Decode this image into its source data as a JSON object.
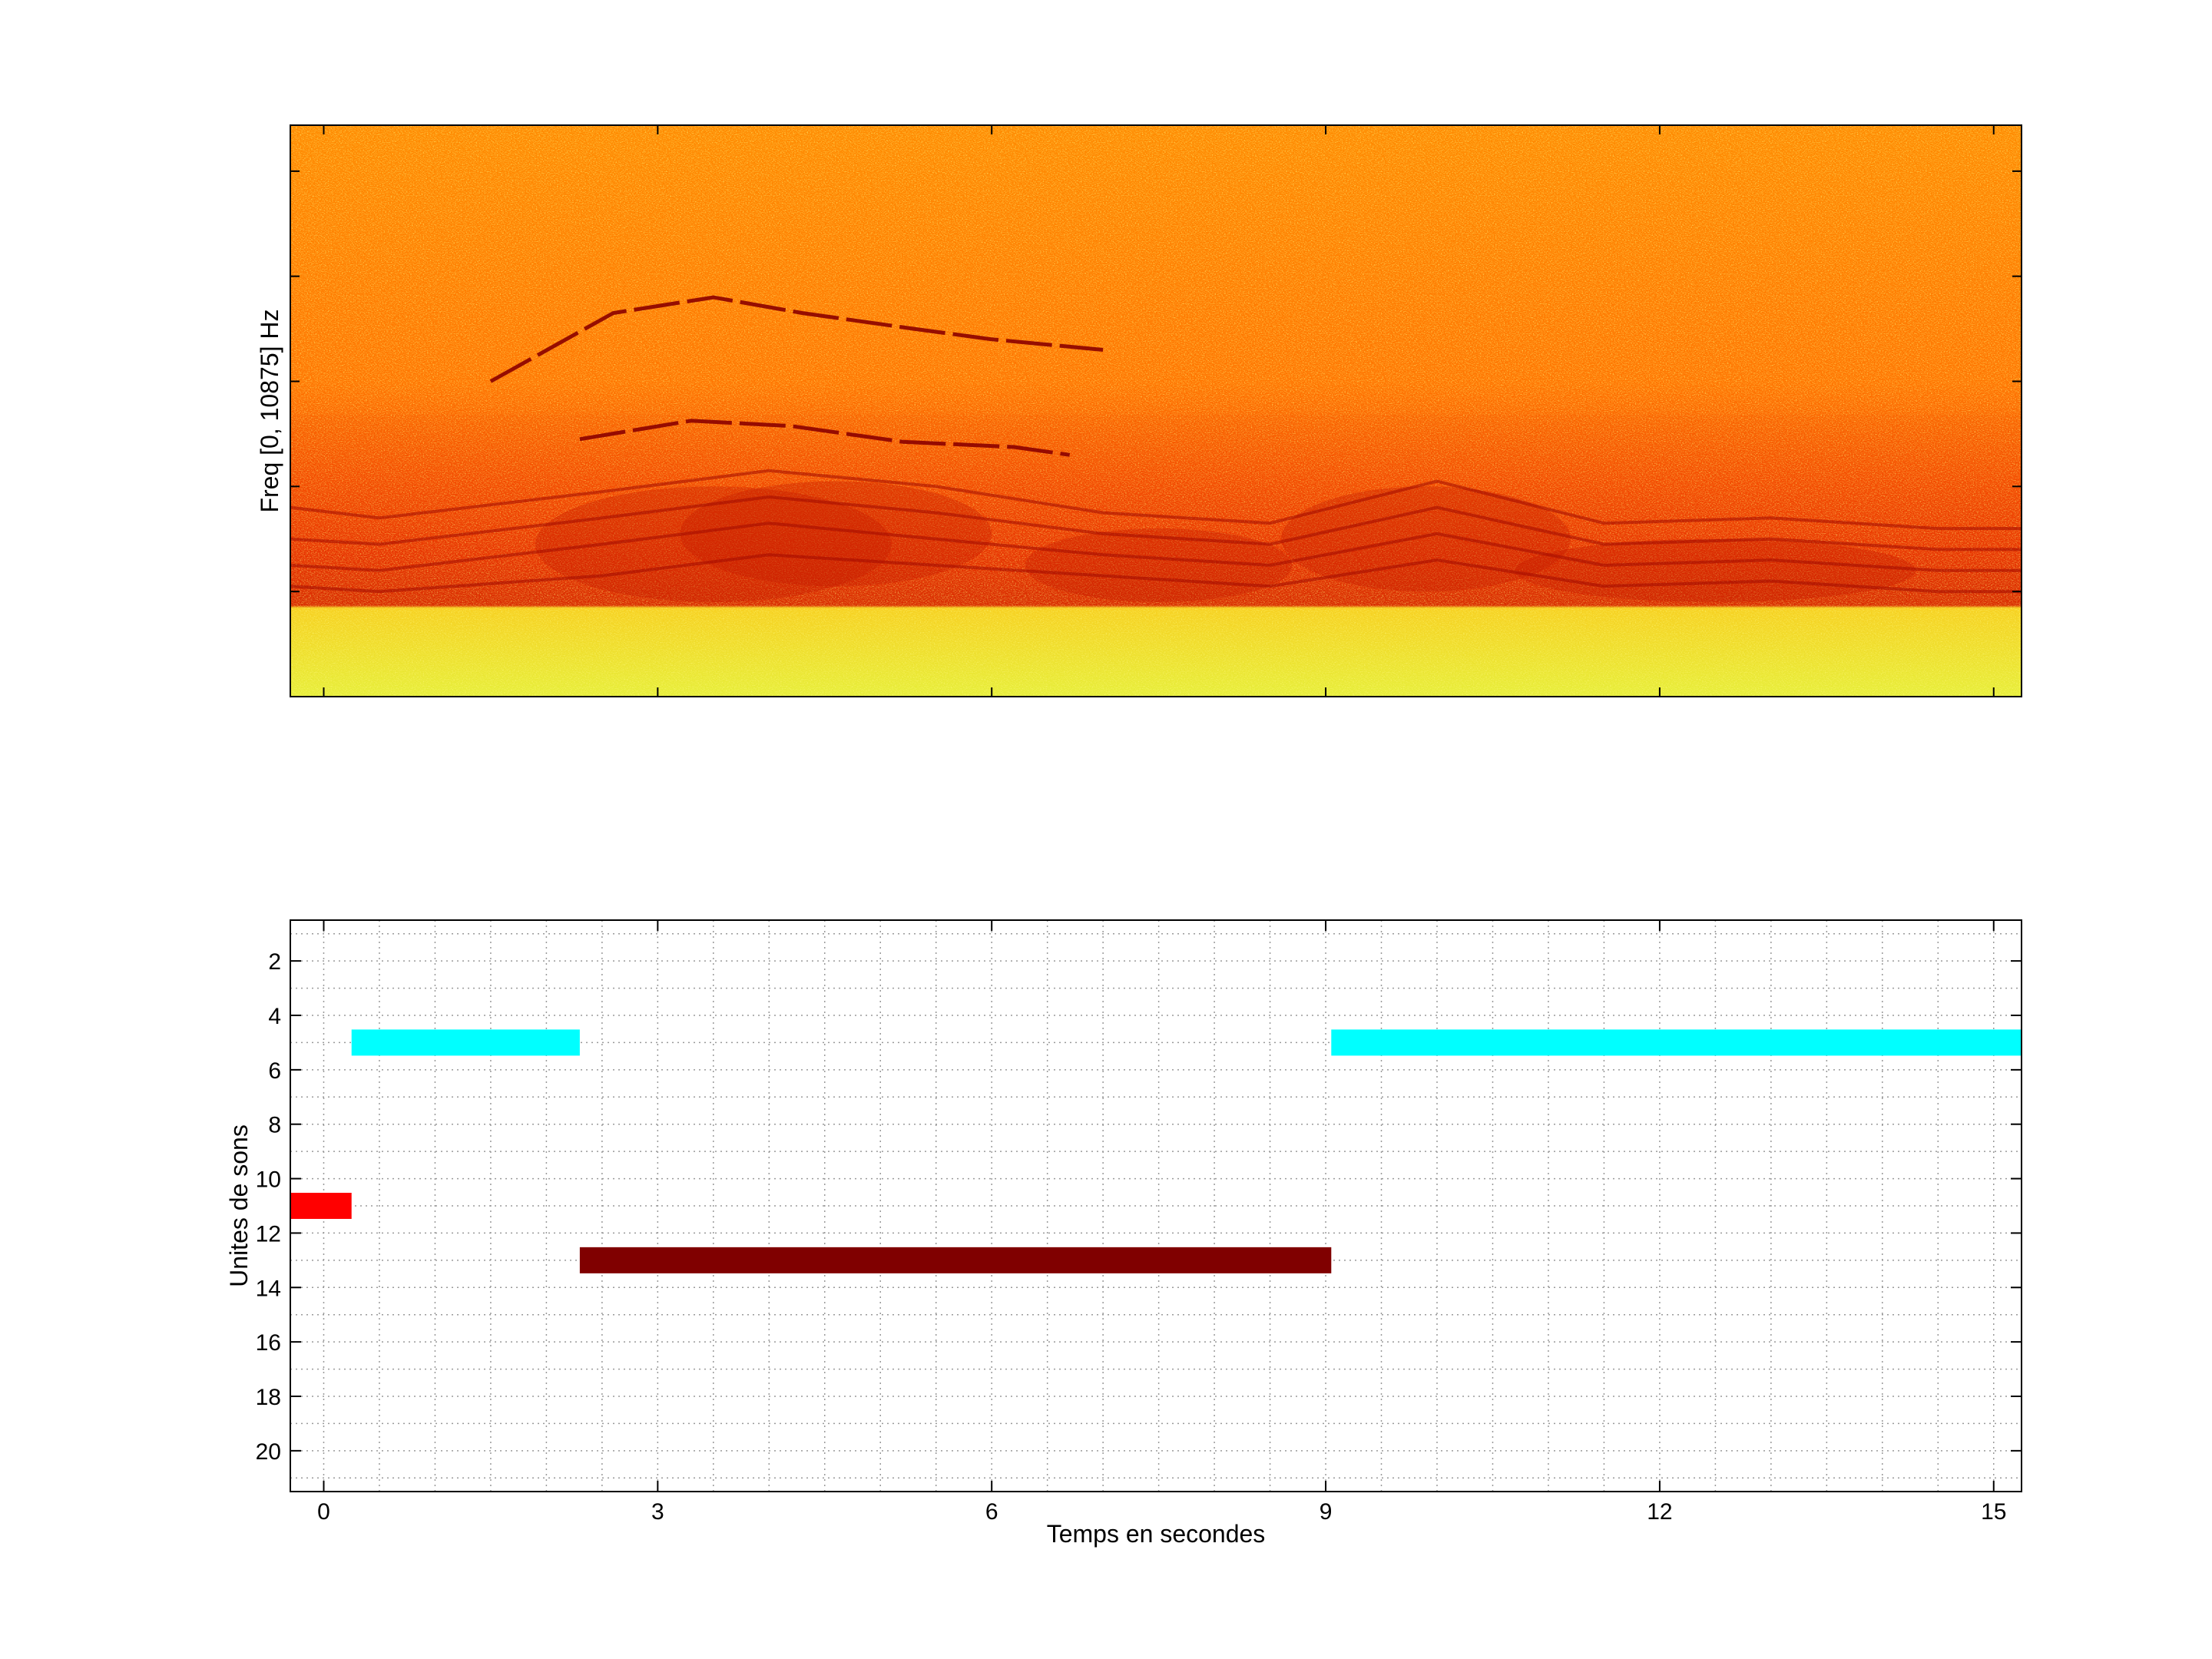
{
  "chart_data": [
    {
      "type": "heatmap",
      "title": "",
      "ylabel": "Freq [0, 10875] Hz",
      "xlabel": "",
      "xlim": [
        -0.3,
        15.25
      ],
      "ylim": [
        0,
        10875
      ],
      "colormap": [
        "#f4f02a",
        "#ffb000",
        "#ff7a00",
        "#e83a00",
        "#8b0000"
      ],
      "harmonic_tracks": [
        {
          "x": [
            2.3,
            3.3,
            4.2,
            5.2,
            6.2,
            6.7
          ],
          "y": [
            4.9,
            5.25,
            5.15,
            4.85,
            4.75,
            4.6
          ]
        },
        {
          "x": [
            1.5,
            2.6,
            3.5,
            4.3,
            5.3,
            6.0,
            7.0
          ],
          "y": [
            6.0,
            7.3,
            7.6,
            7.3,
            7.0,
            6.8,
            6.6
          ]
        },
        {
          "x": [
            -0.3,
            0.5,
            2.5,
            4.0,
            5.5,
            7.0,
            8.5,
            10.0,
            11.5,
            13.0,
            14.5,
            15.25
          ],
          "y": [
            2.1,
            2.0,
            2.3,
            2.7,
            2.5,
            2.3,
            2.1,
            2.6,
            2.1,
            2.2,
            2.0,
            2.0
          ]
        },
        {
          "x": [
            -0.3,
            0.5,
            2.5,
            4.0,
            5.5,
            7.0,
            8.5,
            10.0,
            11.5,
            13.0,
            14.5,
            15.25
          ],
          "y": [
            2.5,
            2.4,
            2.9,
            3.3,
            3.0,
            2.7,
            2.5,
            3.1,
            2.5,
            2.6,
            2.4,
            2.4
          ]
        },
        {
          "x": [
            -0.3,
            0.5,
            2.5,
            4.0,
            5.5,
            7.0,
            8.5,
            10.0,
            11.5,
            13.0,
            14.5,
            15.25
          ],
          "y": [
            3.0,
            2.9,
            3.4,
            3.8,
            3.5,
            3.1,
            2.9,
            3.6,
            2.9,
            3.0,
            2.8,
            2.8
          ]
        },
        {
          "x": [
            -0.3,
            0.5,
            2.5,
            4.0,
            5.5,
            7.0,
            8.5,
            10.0,
            11.5,
            13.0,
            14.5,
            15.25
          ],
          "y": [
            3.6,
            3.4,
            3.9,
            4.3,
            4.0,
            3.5,
            3.3,
            4.1,
            3.3,
            3.4,
            3.2,
            3.2
          ]
        }
      ]
    },
    {
      "type": "bar",
      "title": "",
      "xlabel": "Temps en secondes",
      "ylabel": "Unites de sons",
      "xlim": [
        -0.3,
        15.25
      ],
      "ylim": [
        21.5,
        0.5
      ],
      "xticks": [
        0,
        3,
        6,
        9,
        12,
        15
      ],
      "yticks": [
        2,
        4,
        6,
        8,
        10,
        12,
        14,
        16,
        18,
        20
      ],
      "grid": true,
      "series": [
        {
          "unit": 5,
          "start": 0.25,
          "end": 2.3,
          "color": "#00ffff"
        },
        {
          "unit": 5,
          "start": 9.05,
          "end": 15.25,
          "color": "#00ffff"
        },
        {
          "unit": 11,
          "start": -0.3,
          "end": 0.25,
          "color": "#ff0000"
        },
        {
          "unit": 13,
          "start": 2.3,
          "end": 9.05,
          "color": "#800000"
        }
      ]
    }
  ]
}
